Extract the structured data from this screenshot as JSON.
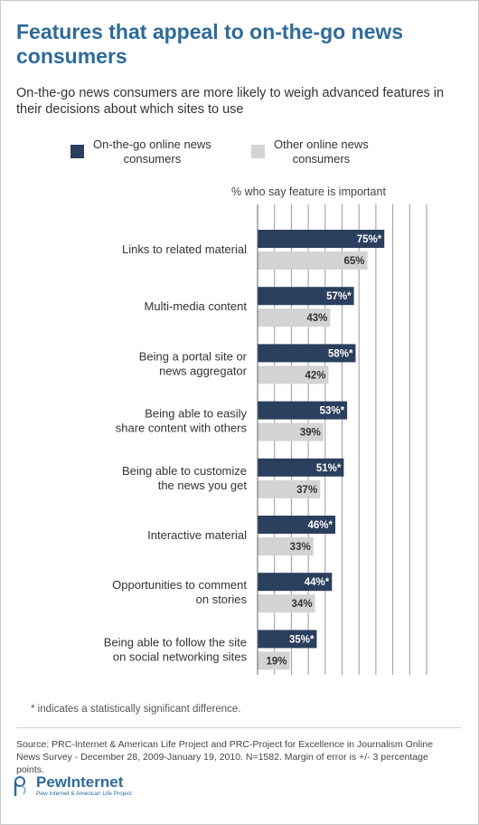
{
  "header": {
    "title": "Features that appeal to on-the-go news consumers",
    "subtitle": "On-the-go news consumers are more likely to weigh advanced features in their decisions about which sites to use"
  },
  "colors": {
    "series1": "#2b3f5e",
    "series2": "#d3d3d3",
    "title": "#2e6b99",
    "grid": "#999999"
  },
  "chart_data": {
    "type": "bar",
    "orientation": "horizontal",
    "value_axis_label": "% who say feature is important",
    "xlim": [
      0,
      100
    ],
    "grid": true,
    "legend_placement": "top",
    "categories": [
      [
        "Links to related material"
      ],
      [
        "Multi-media content"
      ],
      [
        "Being a portal site or",
        "news aggregator"
      ],
      [
        "Being able to easily",
        "share content with others"
      ],
      [
        "Being able to customize",
        "the news you get"
      ],
      [
        "Interactive material"
      ],
      [
        "Opportunities to comment",
        "on stories"
      ],
      [
        "Being able to follow the site",
        "on social networking sites"
      ]
    ],
    "series": [
      {
        "name": "On-the-go online news consumers",
        "values": [
          75,
          57,
          58,
          53,
          51,
          46,
          44,
          35
        ],
        "labels": [
          "75%*",
          "57%*",
          "58%*",
          "53%*",
          "51%*",
          "46%*",
          "44%*",
          "35%*"
        ]
      },
      {
        "name": "Other online news consumers",
        "values": [
          65,
          43,
          42,
          39,
          37,
          33,
          34,
          19
        ],
        "labels": [
          "65%",
          "43%",
          "42%",
          "39%",
          "37%",
          "33%",
          "34%",
          "19%"
        ]
      }
    ]
  },
  "legend": {
    "series1": [
      "On-the-go online news",
      "consumers"
    ],
    "series2": [
      "Other online news",
      "consumers"
    ]
  },
  "footnote": "* indicates a statistically significant difference.",
  "source": "Source: PRC-Internet & American Life Project and PRC-Project for Excellence in Journalism Online News Survey - December 28, 2009-January 19, 2010. N=1582. Margin of error is +/- 3 percentage points.",
  "logo": {
    "name": "PewInternet",
    "tagline": "Pew Internet & American Life Project"
  }
}
